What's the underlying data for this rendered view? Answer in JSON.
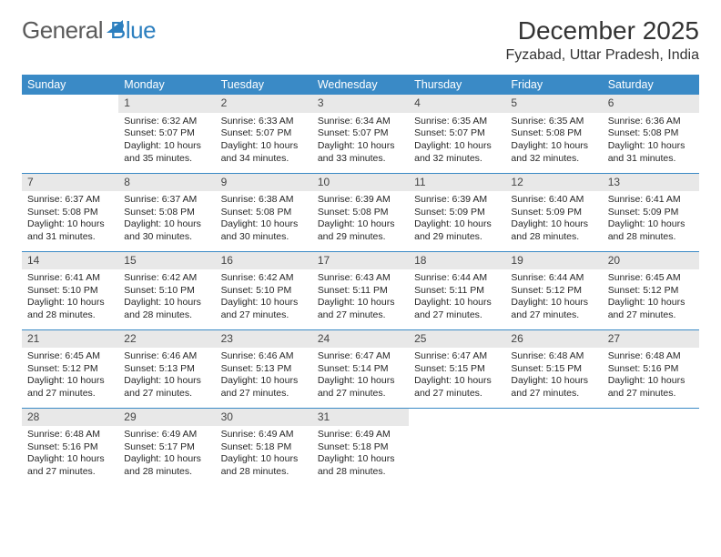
{
  "brand": {
    "part1": "General",
    "part2": "Blue"
  },
  "title": "December 2025",
  "location": "Fyzabad, Uttar Pradesh, India",
  "colors": {
    "header_bg": "#3a8ac6",
    "header_text": "#ffffff",
    "daynum_bg": "#e8e8e8",
    "row_divider": "#3a8ac6",
    "body_text": "#262626",
    "brand_gray": "#5a5a5a",
    "brand_blue": "#2c7fbf"
  },
  "fonts": {
    "title_size_pt": 21,
    "location_size_pt": 12,
    "weekday_size_pt": 9,
    "cell_size_pt": 8
  },
  "weekdays": [
    "Sunday",
    "Monday",
    "Tuesday",
    "Wednesday",
    "Thursday",
    "Friday",
    "Saturday"
  ],
  "first_weekday_index": 1,
  "days": [
    {
      "n": 1,
      "sunrise": "6:32 AM",
      "sunset": "5:07 PM",
      "daylight": "10 hours and 35 minutes."
    },
    {
      "n": 2,
      "sunrise": "6:33 AM",
      "sunset": "5:07 PM",
      "daylight": "10 hours and 34 minutes."
    },
    {
      "n": 3,
      "sunrise": "6:34 AM",
      "sunset": "5:07 PM",
      "daylight": "10 hours and 33 minutes."
    },
    {
      "n": 4,
      "sunrise": "6:35 AM",
      "sunset": "5:07 PM",
      "daylight": "10 hours and 32 minutes."
    },
    {
      "n": 5,
      "sunrise": "6:35 AM",
      "sunset": "5:08 PM",
      "daylight": "10 hours and 32 minutes."
    },
    {
      "n": 6,
      "sunrise": "6:36 AM",
      "sunset": "5:08 PM",
      "daylight": "10 hours and 31 minutes."
    },
    {
      "n": 7,
      "sunrise": "6:37 AM",
      "sunset": "5:08 PM",
      "daylight": "10 hours and 31 minutes."
    },
    {
      "n": 8,
      "sunrise": "6:37 AM",
      "sunset": "5:08 PM",
      "daylight": "10 hours and 30 minutes."
    },
    {
      "n": 9,
      "sunrise": "6:38 AM",
      "sunset": "5:08 PM",
      "daylight": "10 hours and 30 minutes."
    },
    {
      "n": 10,
      "sunrise": "6:39 AM",
      "sunset": "5:08 PM",
      "daylight": "10 hours and 29 minutes."
    },
    {
      "n": 11,
      "sunrise": "6:39 AM",
      "sunset": "5:09 PM",
      "daylight": "10 hours and 29 minutes."
    },
    {
      "n": 12,
      "sunrise": "6:40 AM",
      "sunset": "5:09 PM",
      "daylight": "10 hours and 28 minutes."
    },
    {
      "n": 13,
      "sunrise": "6:41 AM",
      "sunset": "5:09 PM",
      "daylight": "10 hours and 28 minutes."
    },
    {
      "n": 14,
      "sunrise": "6:41 AM",
      "sunset": "5:10 PM",
      "daylight": "10 hours and 28 minutes."
    },
    {
      "n": 15,
      "sunrise": "6:42 AM",
      "sunset": "5:10 PM",
      "daylight": "10 hours and 28 minutes."
    },
    {
      "n": 16,
      "sunrise": "6:42 AM",
      "sunset": "5:10 PM",
      "daylight": "10 hours and 27 minutes."
    },
    {
      "n": 17,
      "sunrise": "6:43 AM",
      "sunset": "5:11 PM",
      "daylight": "10 hours and 27 minutes."
    },
    {
      "n": 18,
      "sunrise": "6:44 AM",
      "sunset": "5:11 PM",
      "daylight": "10 hours and 27 minutes."
    },
    {
      "n": 19,
      "sunrise": "6:44 AM",
      "sunset": "5:12 PM",
      "daylight": "10 hours and 27 minutes."
    },
    {
      "n": 20,
      "sunrise": "6:45 AM",
      "sunset": "5:12 PM",
      "daylight": "10 hours and 27 minutes."
    },
    {
      "n": 21,
      "sunrise": "6:45 AM",
      "sunset": "5:12 PM",
      "daylight": "10 hours and 27 minutes."
    },
    {
      "n": 22,
      "sunrise": "6:46 AM",
      "sunset": "5:13 PM",
      "daylight": "10 hours and 27 minutes."
    },
    {
      "n": 23,
      "sunrise": "6:46 AM",
      "sunset": "5:13 PM",
      "daylight": "10 hours and 27 minutes."
    },
    {
      "n": 24,
      "sunrise": "6:47 AM",
      "sunset": "5:14 PM",
      "daylight": "10 hours and 27 minutes."
    },
    {
      "n": 25,
      "sunrise": "6:47 AM",
      "sunset": "5:15 PM",
      "daylight": "10 hours and 27 minutes."
    },
    {
      "n": 26,
      "sunrise": "6:48 AM",
      "sunset": "5:15 PM",
      "daylight": "10 hours and 27 minutes."
    },
    {
      "n": 27,
      "sunrise": "6:48 AM",
      "sunset": "5:16 PM",
      "daylight": "10 hours and 27 minutes."
    },
    {
      "n": 28,
      "sunrise": "6:48 AM",
      "sunset": "5:16 PM",
      "daylight": "10 hours and 27 minutes."
    },
    {
      "n": 29,
      "sunrise": "6:49 AM",
      "sunset": "5:17 PM",
      "daylight": "10 hours and 28 minutes."
    },
    {
      "n": 30,
      "sunrise": "6:49 AM",
      "sunset": "5:18 PM",
      "daylight": "10 hours and 28 minutes."
    },
    {
      "n": 31,
      "sunrise": "6:49 AM",
      "sunset": "5:18 PM",
      "daylight": "10 hours and 28 minutes."
    }
  ],
  "labels": {
    "sunrise_prefix": "Sunrise: ",
    "sunset_prefix": "Sunset: ",
    "daylight_prefix": "Daylight: "
  }
}
